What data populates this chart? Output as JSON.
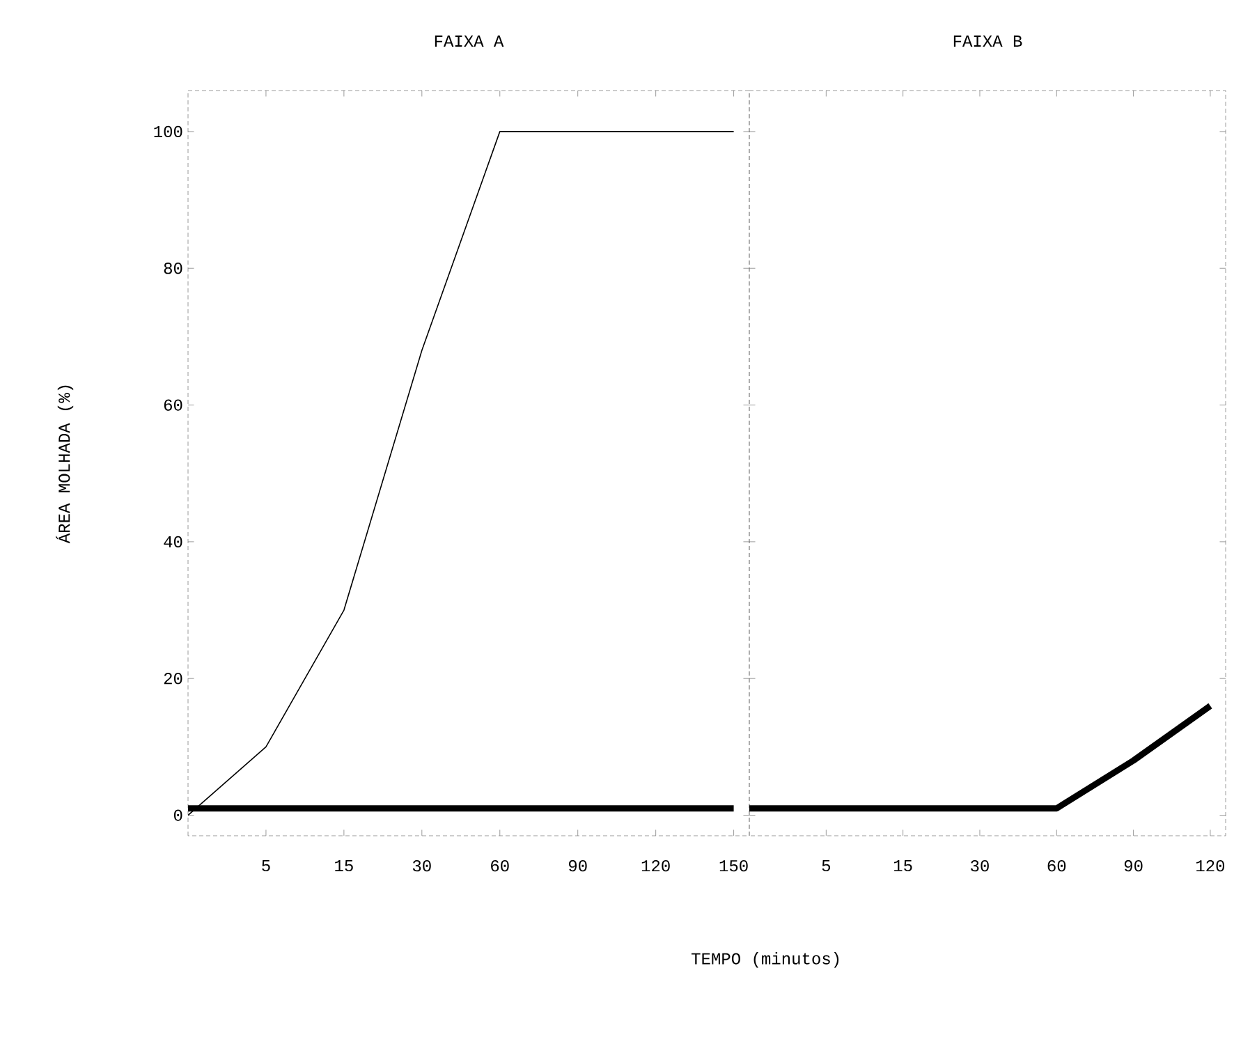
{
  "chart_data": [
    {
      "type": "line",
      "title": "FAIXA A",
      "ylabel": "ÁREA MOLHADA (%)",
      "xlabel": "TEMPO (minutos)",
      "categories": [
        null,
        "5",
        "15",
        "30",
        "60",
        "90",
        "120",
        "150"
      ],
      "series": [
        {
          "color": "#000000",
          "values": [
            0,
            10,
            30,
            68,
            100,
            100,
            100,
            100
          ]
        },
        {
          "color": "#000000",
          "values": [
            1,
            1,
            1,
            1,
            1,
            1,
            1,
            1
          ]
        }
      ],
      "ylim": [
        -3,
        106
      ],
      "yticks": [
        0,
        20,
        40,
        60,
        80,
        100
      ],
      "grid": false,
      "marker": "none",
      "line_style": "solid"
    },
    {
      "type": "line",
      "title": "FAIXA B",
      "categories": [
        null,
        "5",
        "15",
        "30",
        "60",
        "90",
        "120"
      ],
      "series": [
        {
          "color": "#000000",
          "values": [
            1,
            1,
            1,
            1,
            1,
            8,
            16
          ]
        }
      ],
      "ylim": [
        -3,
        106
      ],
      "yticks": [
        0,
        20,
        40,
        60,
        80,
        100
      ],
      "tick_labels": "x",
      "grid": false,
      "marker": "none",
      "line_style": "solid"
    }
  ]
}
